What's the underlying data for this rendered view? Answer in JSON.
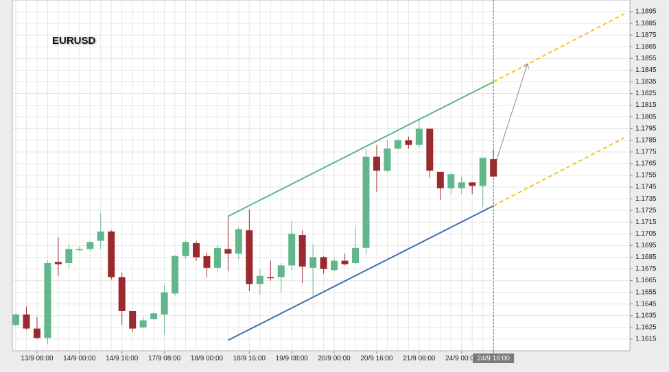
{
  "chart_data": {
    "type": "candlestick",
    "title": "EURUSD",
    "categories": [
      null,
      null,
      "13/9 08:00",
      null,
      null,
      null,
      "14/9 00:00",
      null,
      null,
      null,
      "14/9 16:00",
      null,
      null,
      null,
      "17/9 08:00",
      null,
      null,
      null,
      "18/9 00:00",
      null,
      null,
      null,
      "18/9 16:00",
      null,
      null,
      null,
      "19/9 08:00",
      null,
      null,
      null,
      "20/9 00:00",
      null,
      null,
      null,
      "20/9 16:00",
      null,
      null,
      null,
      "21/9 08:00",
      null,
      null,
      null,
      "24/9 00:00",
      null,
      null,
      "24/9 16:00"
    ],
    "open": [
      1.1627,
      1.1636,
      1.1624,
      1.1616,
      1.1681,
      1.168,
      1.1691,
      1.1692,
      1.1699,
      1.1707,
      1.1668,
      1.1639,
      1.1625,
      1.1632,
      1.1636,
      1.1654,
      1.1686,
      1.1697,
      1.1686,
      1.1676,
      1.1692,
      1.1688,
      1.1708,
      1.1662,
      1.1668,
      1.1668,
      1.1678,
      1.1704,
      1.1676,
      1.1685,
      1.1674,
      1.1682,
      1.168,
      1.1693,
      1.1771,
      1.1759,
      1.1778,
      1.1785,
      1.1781,
      1.1795,
      1.1758,
      1.1744,
      1.1744,
      1.1749,
      1.1746,
      1.1769
    ],
    "high": [
      1.1637,
      1.1643,
      1.1634,
      1.1682,
      1.1702,
      1.1696,
      1.1694,
      1.1699,
      1.1723,
      1.1708,
      1.1672,
      1.1639,
      1.1634,
      1.1638,
      1.1661,
      1.1687,
      1.1699,
      1.1699,
      1.1689,
      1.1695,
      1.172,
      1.1711,
      1.1726,
      1.1675,
      1.1682,
      1.168,
      1.1716,
      1.1708,
      1.1696,
      1.1686,
      1.1684,
      1.1688,
      1.1711,
      1.1777,
      1.1781,
      1.1785,
      1.1786,
      1.1788,
      1.1804,
      1.1795,
      1.1758,
      1.1757,
      1.1754,
      1.1749,
      1.177,
      1.1777
    ],
    "low": [
      1.1626,
      1.1623,
      1.1615,
      1.1611,
      1.1669,
      1.1676,
      1.169,
      1.169,
      1.1692,
      1.1666,
      1.1627,
      1.1621,
      1.1624,
      1.1631,
      1.1619,
      1.1652,
      1.1684,
      1.1682,
      1.1668,
      1.1673,
      1.1673,
      1.1683,
      1.1656,
      1.1653,
      1.1665,
      1.1655,
      1.1674,
      1.1663,
      1.1651,
      1.1671,
      1.1673,
      1.1678,
      1.1679,
      1.1688,
      1.1741,
      1.1758,
      1.1777,
      1.1778,
      1.1779,
      1.1753,
      1.1734,
      1.1739,
      1.1739,
      1.1739,
      1.1728,
      1.1754
    ],
    "close": [
      1.1636,
      1.1624,
      1.1616,
      1.168,
      1.1679,
      1.1692,
      1.1692,
      1.1698,
      1.1707,
      1.1668,
      1.1639,
      1.1624,
      1.1631,
      1.1637,
      1.1655,
      1.1686,
      1.1698,
      1.1685,
      1.1676,
      1.1693,
      1.1688,
      1.1709,
      1.1662,
      1.1669,
      1.1667,
      1.1678,
      1.1705,
      1.1677,
      1.1685,
      1.1675,
      1.1682,
      1.1679,
      1.1693,
      1.1771,
      1.1759,
      1.1778,
      1.1785,
      1.1781,
      1.1795,
      1.1759,
      1.1744,
      1.1756,
      1.1749,
      1.1746,
      1.177,
      1.1754
    ],
    "up_color": "#62b68b",
    "down_color": "#9a2a2e",
    "ylim": [
      1.1605,
      1.1905
    ],
    "yticks": [
      1.1615,
      1.1625,
      1.1635,
      1.1645,
      1.1655,
      1.1665,
      1.1675,
      1.1685,
      1.1695,
      1.1705,
      1.1715,
      1.1725,
      1.1735,
      1.1745,
      1.1755,
      1.1765,
      1.1775,
      1.1785,
      1.1795,
      1.1805,
      1.1815,
      1.1825,
      1.1835,
      1.1845,
      1.1855,
      1.1865,
      1.1875,
      1.1885,
      1.1895
    ],
    "grid": true,
    "overlays": [
      {
        "color": "#5db58a",
        "dashed": false,
        "arrow": false,
        "x": [
          20,
          45
        ],
        "y": [
          1.172,
          1.1835
        ]
      },
      {
        "color": "#3a6fb5",
        "dashed": false,
        "arrow": false,
        "x": [
          20,
          45
        ],
        "y": [
          1.1614,
          1.1729
        ]
      },
      {
        "color": "#f5c518",
        "dashed": true,
        "arrow": false,
        "x": [
          45,
          57.3
        ],
        "y": [
          1.1835,
          1.1893
        ]
      },
      {
        "color": "#f5c518",
        "dashed": true,
        "arrow": false,
        "x": [
          45,
          57.3
        ],
        "y": [
          1.1729,
          1.1787
        ]
      },
      {
        "color": "#8a8a8a",
        "dashed": false,
        "arrow": true,
        "x": [
          45,
          48.2
        ],
        "y": [
          1.176,
          1.185
        ]
      }
    ]
  }
}
